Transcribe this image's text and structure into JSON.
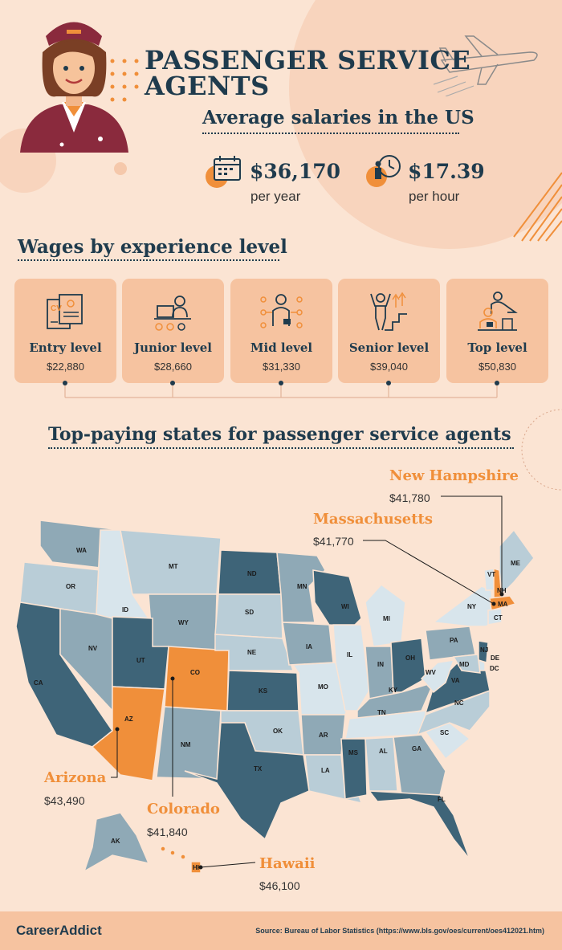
{
  "header": {
    "title_line1": "PASSENGER SERVICE",
    "title_line2": "AGENTS",
    "subtitle": "Average salaries in the US"
  },
  "salary": {
    "yearly_value": "$36,170",
    "yearly_unit": "per year",
    "hourly_value": "$17.39",
    "hourly_unit": "per hour"
  },
  "wages": {
    "title": "Wages by experience level",
    "levels": [
      {
        "label": "Entry level",
        "value": "$22,880",
        "icon": "cv-document-icon"
      },
      {
        "label": "Junior level",
        "value": "$28,660",
        "icon": "laptop-checklist-icon"
      },
      {
        "label": "Mid level",
        "value": "$31,330",
        "icon": "person-network-icon"
      },
      {
        "label": "Senior level",
        "value": "$39,040",
        "icon": "person-stairs-icon"
      },
      {
        "label": "Top level",
        "value": "$50,830",
        "icon": "mentor-icon"
      }
    ]
  },
  "states": {
    "title": "Top-paying states for passenger service agents",
    "highlighted": [
      {
        "name": "New Hampshire",
        "value": "$41,780"
      },
      {
        "name": "Massachusetts",
        "value": "$41,770"
      },
      {
        "name": "Arizona",
        "value": "$43,490"
      },
      {
        "name": "Colorado",
        "value": "$41,840"
      },
      {
        "name": "Hawaii",
        "value": "$46,100"
      }
    ],
    "map_labels": [
      "WA",
      "OR",
      "CA",
      "NV",
      "ID",
      "MT",
      "WY",
      "UT",
      "AZ",
      "CO",
      "NM",
      "ND",
      "SD",
      "NE",
      "KS",
      "OK",
      "TX",
      "MN",
      "IA",
      "MO",
      "AR",
      "LA",
      "WI",
      "IL",
      "MI",
      "IN",
      "OH",
      "KY",
      "TN",
      "MS",
      "AL",
      "GA",
      "FL",
      "SC",
      "NC",
      "VA",
      "WV",
      "PA",
      "NY",
      "VT",
      "NH",
      "ME",
      "MA",
      "CT",
      "NJ",
      "DE",
      "MD",
      "DC",
      "AK",
      "HI"
    ]
  },
  "colors": {
    "background": "#fbe4d3",
    "navy": "#1f3b4d",
    "accent_orange": "#f08f3a",
    "card": "#f6c3a0",
    "map_dark": "#3e6478",
    "map_mid": "#8fa9b6",
    "map_light": "#b9cdd7",
    "map_pale": "#d8e5ec"
  },
  "footer": {
    "logo": "CareerAddict",
    "source": "Source: Bureau of Labor Statistics (https://www.bls.gov/oes/current/oes412021.htm)"
  }
}
